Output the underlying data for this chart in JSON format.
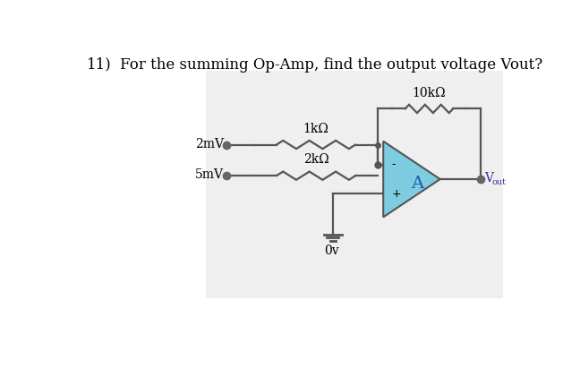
{
  "title_number": "11)",
  "title_text": "For the summing Op-Amp, find the output voltage Vout?",
  "title_fontsize": 12,
  "bg_facecolor": "#efefef",
  "wire_color": "#555555",
  "node_color": "#555555",
  "amp_fill": "#7ecce0",
  "amp_edge": "#555555",
  "v1_label": "2mV",
  "v2_label": "5mV",
  "r1_label": "1kΩ",
  "r2_label": "2kΩ",
  "rf_label": "10kΩ",
  "gnd_label": "0v",
  "vout_label": "V",
  "vout_sub": "out",
  "amp_label": "A",
  "minus_label": "-",
  "plus_label": "+"
}
